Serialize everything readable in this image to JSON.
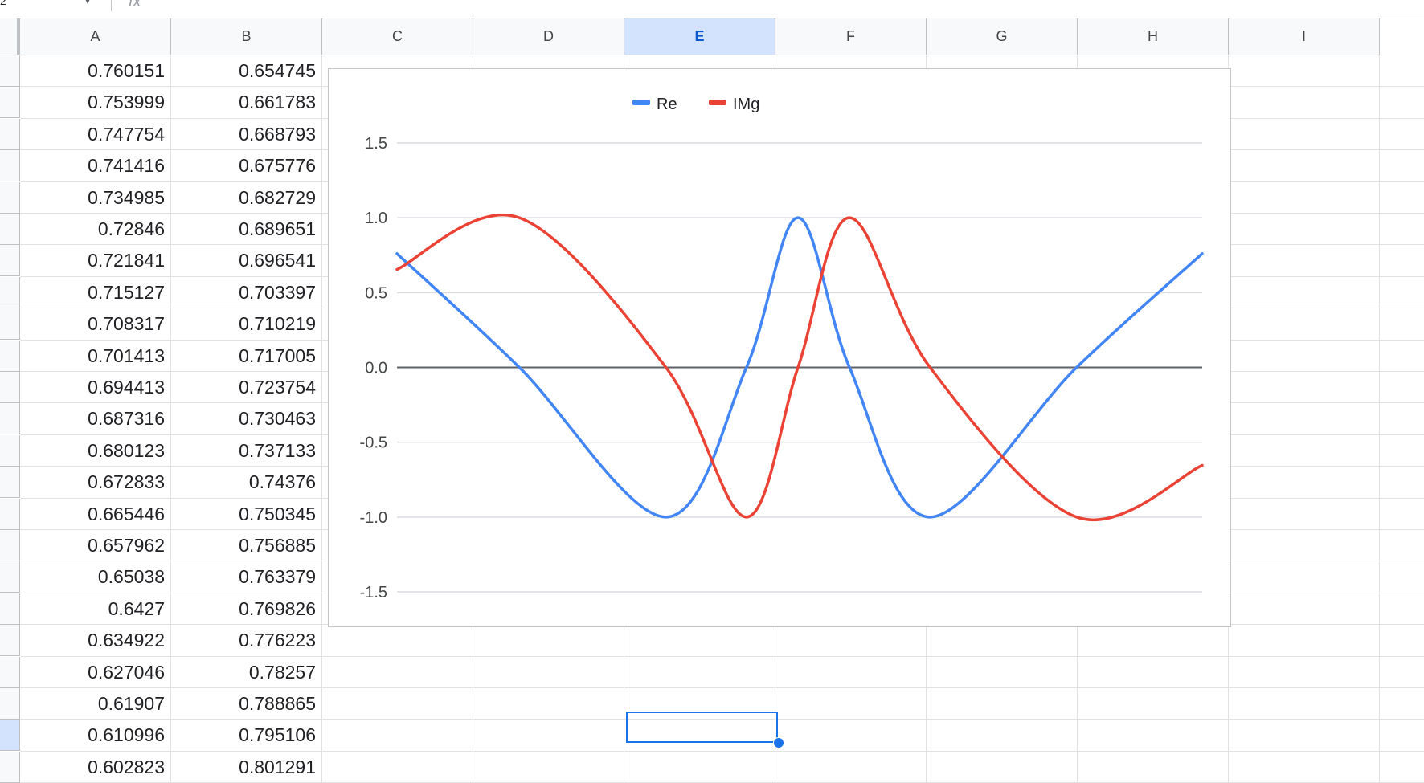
{
  "formula_bar": {
    "cell_ref": "2",
    "fx_label": "fx"
  },
  "columns": [
    "A",
    "B",
    "C",
    "D",
    "E",
    "F",
    "G",
    "H",
    "I"
  ],
  "selected_column": "E",
  "rows": [
    [
      "0.760151",
      "0.654745"
    ],
    [
      "0.753999",
      "0.661783"
    ],
    [
      "0.747754",
      "0.668793"
    ],
    [
      "0.741416",
      "0.675776"
    ],
    [
      "0.734985",
      "0.682729"
    ],
    [
      "0.72846",
      "0.689651"
    ],
    [
      "0.721841",
      "0.696541"
    ],
    [
      "0.715127",
      "0.703397"
    ],
    [
      "0.708317",
      "0.710219"
    ],
    [
      "0.701413",
      "0.717005"
    ],
    [
      "0.694413",
      "0.723754"
    ],
    [
      "0.687316",
      "0.730463"
    ],
    [
      "0.680123",
      "0.737133"
    ],
    [
      "0.672833",
      "0.74376"
    ],
    [
      "0.665446",
      "0.750345"
    ],
    [
      "0.657962",
      "0.756885"
    ],
    [
      "0.65038",
      "0.763379"
    ],
    [
      "0.6427",
      "0.769826"
    ],
    [
      "0.634922",
      "0.776223"
    ],
    [
      "0.627046",
      "0.78257"
    ],
    [
      "0.61907",
      "0.788865"
    ],
    [
      "0.610996",
      "0.795106"
    ],
    [
      "0.602823",
      "0.801291"
    ]
  ],
  "chart_data": {
    "type": "line",
    "ylim": [
      -1.5,
      1.5
    ],
    "y_ticks": [
      "1.5",
      "1.0",
      "0.5",
      "0.0",
      "-0.5",
      "-1.0",
      "-1.5"
    ],
    "grid": true,
    "legend_position": "top",
    "series": [
      {
        "name": "Re",
        "color": "#4285f4",
        "values": [
          0.760151,
          0.0,
          -1.0,
          0.0,
          1.0,
          0.0,
          -1.0,
          0.0,
          0.760151
        ]
      },
      {
        "name": "IMg",
        "color": "#ea4335",
        "values": [
          0.654745,
          1.0,
          0.0,
          -1.0,
          0.0,
          1.0,
          0.0,
          -1.0,
          -0.654745
        ]
      }
    ]
  }
}
